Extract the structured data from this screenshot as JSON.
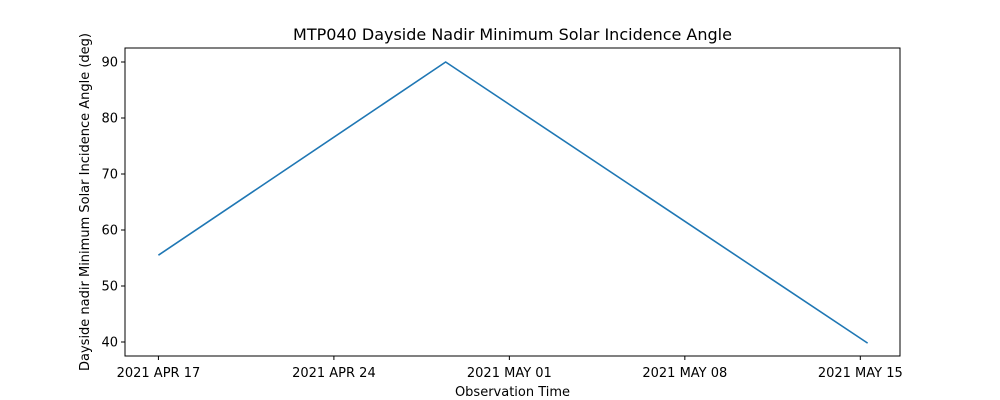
{
  "chart_data": {
    "type": "line",
    "title": "MTP040 Dayside Nadir Minimum Solar Incidence Angle",
    "xlabel": "Observation Time",
    "ylabel": "Dayside nadir Minimum Solar Incidence Angle (deg)",
    "x_type": "date",
    "xlim": [
      "2021-04-15T16:00",
      "2021-05-16T14:00"
    ],
    "ylim": [
      37.5,
      92.5
    ],
    "x_ticks": [
      {
        "date": "2021-04-17",
        "label": "2021 APR 17"
      },
      {
        "date": "2021-04-24",
        "label": "2021 APR 24"
      },
      {
        "date": "2021-05-01",
        "label": "2021 MAY 01"
      },
      {
        "date": "2021-05-08",
        "label": "2021 MAY 08"
      },
      {
        "date": "2021-05-15",
        "label": "2021 MAY 15"
      }
    ],
    "y_ticks": [
      40,
      50,
      60,
      70,
      80,
      90
    ],
    "grid": false,
    "legend": "none",
    "series": [
      {
        "color": "#1f77b4",
        "points": [
          {
            "x": "2021-04-17T00:00",
            "y": 55.5
          },
          {
            "x": "2021-04-28T11:00",
            "y": 90.0
          },
          {
            "x": "2021-05-15T07:00",
            "y": 39.8
          }
        ]
      }
    ]
  }
}
